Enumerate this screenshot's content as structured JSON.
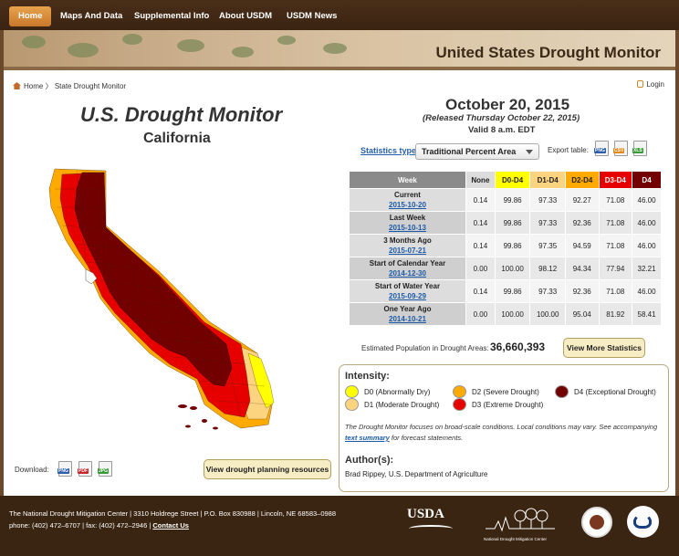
{
  "nav": {
    "items": [
      "Home",
      "Maps And Data",
      "Supplemental Info",
      "About USDM",
      "USDM News"
    ]
  },
  "banner": {
    "title": "United States Drought Monitor"
  },
  "breadcrumb": {
    "home": "Home",
    "current": "State Drought Monitor"
  },
  "login": "Login",
  "map": {
    "title": "U.S. Drought Monitor",
    "subtitle": "California"
  },
  "download": {
    "label": "Download:",
    "formats": [
      "PNG",
      "PDF",
      "JPG"
    ]
  },
  "plan_button": "View drought planning resources",
  "report": {
    "date": "October 20, 2015",
    "released": "(Released Thursday October 22, 2015)",
    "valid": "Valid 8 a.m. EDT"
  },
  "stats": {
    "type_label": "Statistics type:",
    "type_value": "Traditional Percent Area",
    "export_label": "Export table:",
    "export_formats": [
      "PNG",
      "CSV",
      "XLS"
    ]
  },
  "table": {
    "headers": [
      "Week",
      "None",
      "D0-D4",
      "D1-D4",
      "D2-D4",
      "D3-D4",
      "D4"
    ],
    "header_colors": [
      "#8a8a8a",
      "#dcdcdc",
      "#ffff00",
      "#fcd37f",
      "#ffaa00",
      "#e60000",
      "#730000"
    ],
    "rows": [
      {
        "label": "Current",
        "date": "2015-10-20",
        "values": [
          "0.14",
          "99.86",
          "97.33",
          "92.27",
          "71.08",
          "46.00"
        ]
      },
      {
        "label": "Last Week",
        "date": "2015-10-13",
        "values": [
          "0.14",
          "99.86",
          "97.33",
          "92.36",
          "71.08",
          "46.00"
        ]
      },
      {
        "label": "3 Months Ago",
        "date": "2015-07-21",
        "values": [
          "0.14",
          "99.86",
          "97.35",
          "94.59",
          "71.08",
          "46.00"
        ]
      },
      {
        "label": "Start of Calendar Year",
        "date": "2014-12-30",
        "values": [
          "0.00",
          "100.00",
          "98.12",
          "94.34",
          "77.94",
          "32.21"
        ]
      },
      {
        "label": "Start of Water Year",
        "date": "2015-09-29",
        "values": [
          "0.14",
          "99.86",
          "97.33",
          "92.36",
          "71.08",
          "46.00"
        ]
      },
      {
        "label": "One Year Ago",
        "date": "2014-10-21",
        "values": [
          "0.00",
          "100.00",
          "100.00",
          "95.04",
          "81.92",
          "58.41"
        ]
      }
    ]
  },
  "population": {
    "label": "Estimated Population in Drought Areas:",
    "value": "36,660,393",
    "button": "View More Statistics"
  },
  "legend": {
    "title": "Intensity:",
    "items": [
      {
        "code": "D0",
        "text": "D0 (Abnormally Dry)",
        "color": "#ffff00"
      },
      {
        "code": "D1",
        "text": "D1 (Moderate Drought)",
        "color": "#fcd37f"
      },
      {
        "code": "D2",
        "text": "D2 (Severe Drought)",
        "color": "#ffaa00"
      },
      {
        "code": "D3",
        "text": "D3 (Extreme Drought)",
        "color": "#e60000"
      },
      {
        "code": "D4",
        "text": "D4 (Exceptional Drought)",
        "color": "#730000"
      }
    ],
    "note_prefix": "The Drought Monitor focuses on broad-scale conditions. Local conditions may vary. See accompanying ",
    "note_link": "text summary",
    "note_suffix": " for forecast statements.",
    "author_title": "Author(s):",
    "author_name": "Brad Rippey, U.S. Department of Agriculture"
  },
  "footer": {
    "line1": "The National Drought Mitigation Center | 3310 Holdrege Street | P.O. Box 830988 | Lincoln, NE 68583–0988",
    "line2_prefix": "phone: (402) 472–6707 | fax: (402) 472–2946 | ",
    "contact": "Contact Us",
    "usda": "USDA",
    "ndmc": "National Drought Mitigation Center"
  }
}
